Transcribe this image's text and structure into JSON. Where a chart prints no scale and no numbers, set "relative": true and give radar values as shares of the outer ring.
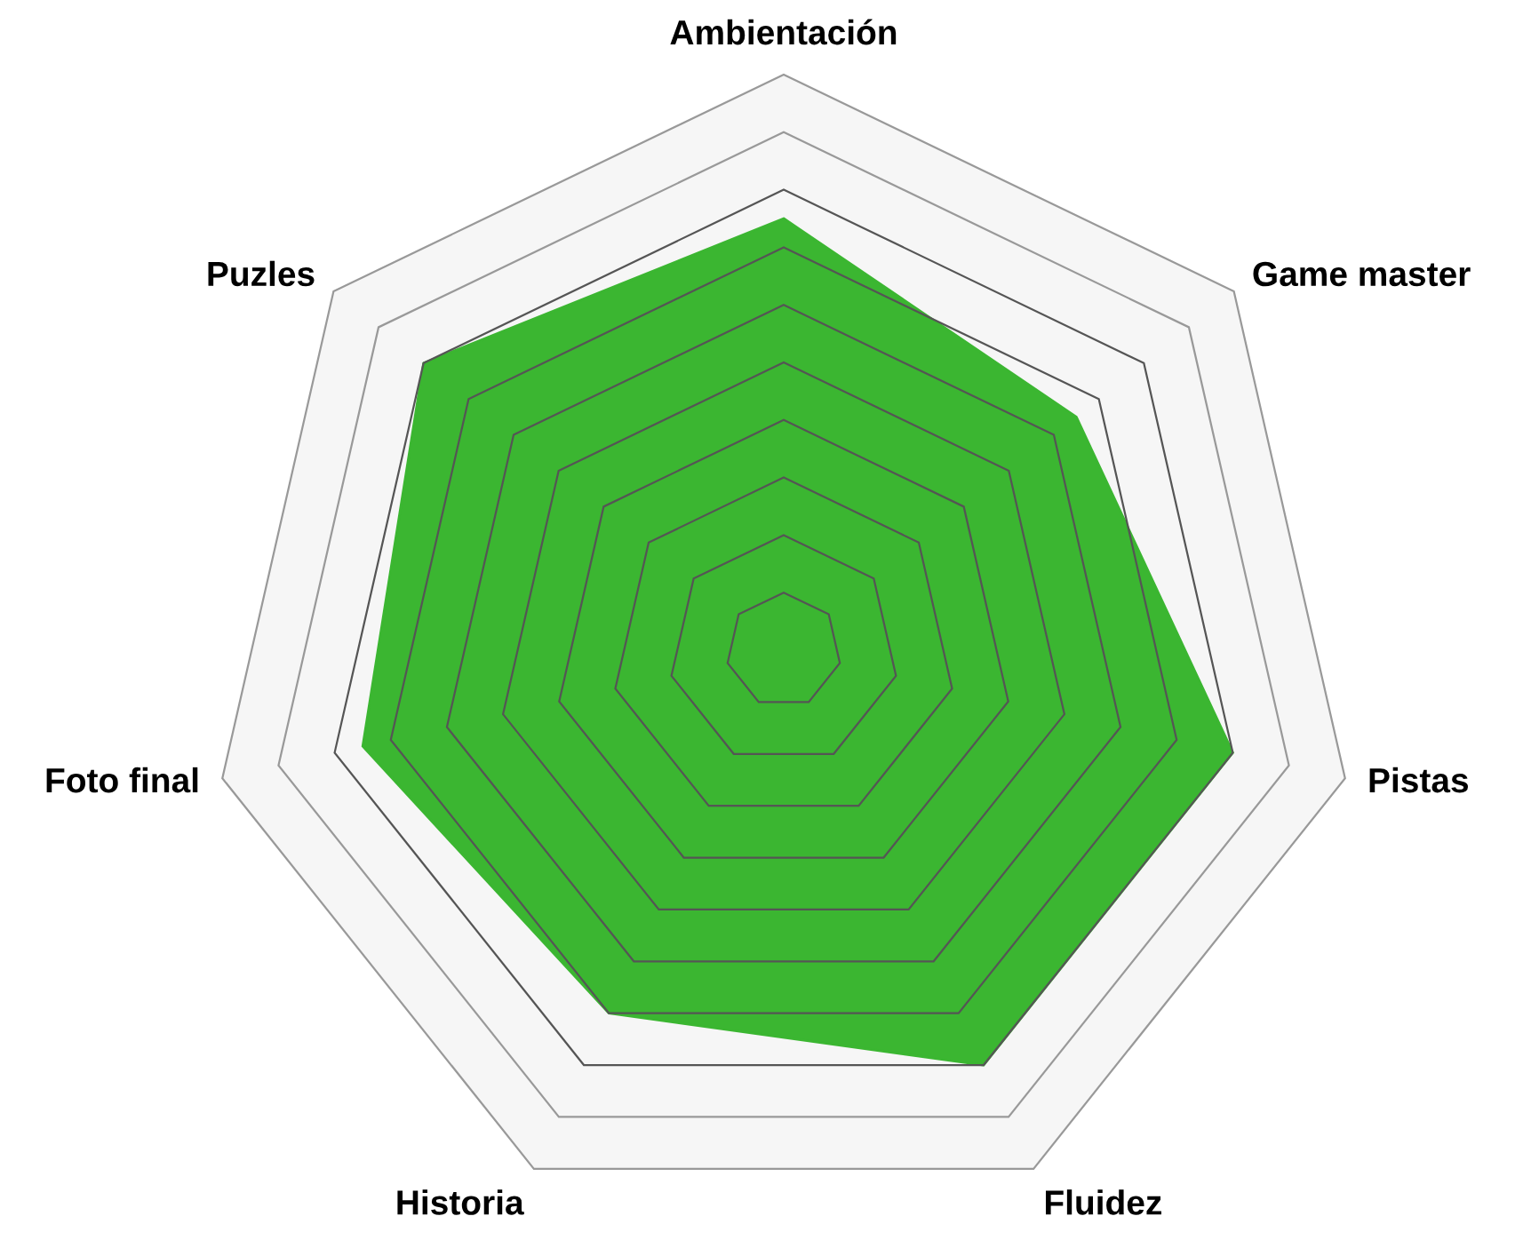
{
  "chart_data": {
    "type": "radar",
    "relative": true,
    "grid": true,
    "categories": [
      "Ambientación",
      "Game master",
      "Pistas",
      "Fluidez",
      "Historia",
      "Foto final",
      "Puzles"
    ],
    "series": [
      {
        "color": "#3bb631",
        "values": [
          0.75,
          0.65,
          0.8,
          0.8,
          0.7,
          0.75,
          0.8
        ]
      }
    ]
  }
}
